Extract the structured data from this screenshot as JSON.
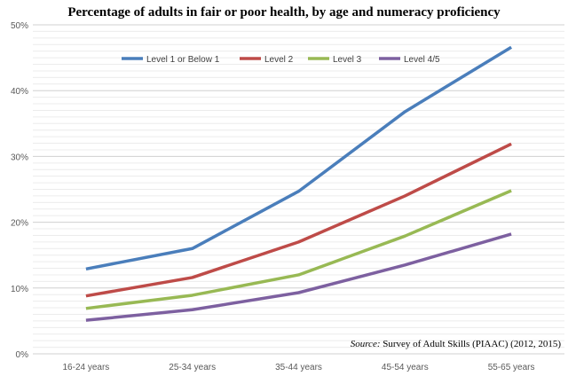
{
  "chart_data": {
    "type": "line",
    "title": "Percentage of adults in fair or poor health, by age and numeracy proficiency",
    "xlabel": "",
    "ylabel": "",
    "categories": [
      "16-24 years",
      "25-34 years",
      "35-44 years",
      "45-54 years",
      "55-65 years"
    ],
    "ylim": [
      0,
      50
    ],
    "yticks": [
      0,
      10,
      20,
      30,
      40,
      50
    ],
    "ytick_labels": [
      "0%",
      "10%",
      "20%",
      "30%",
      "40%",
      "50%"
    ],
    "grid": "horizontal major every 10%, minor every 1%",
    "legend_position": "top-center",
    "series": [
      {
        "name": "Level 1 or Below 1",
        "color": "#4A7EBB",
        "values": [
          12.9,
          16.0,
          24.7,
          36.8,
          46.6
        ]
      },
      {
        "name": "Level 2",
        "color": "#BE4B48",
        "values": [
          8.8,
          11.6,
          17.0,
          24.0,
          31.9
        ]
      },
      {
        "name": "Level 3",
        "color": "#98B954",
        "values": [
          6.9,
          8.9,
          12.0,
          17.9,
          24.8
        ]
      },
      {
        "name": "Level 4/5",
        "color": "#7D60A0",
        "values": [
          5.1,
          6.7,
          9.3,
          13.5,
          18.2
        ]
      }
    ],
    "source_label": "Source:",
    "source_text": " Survey of Adult Skills (PIAAC) (2012, 2015)"
  }
}
